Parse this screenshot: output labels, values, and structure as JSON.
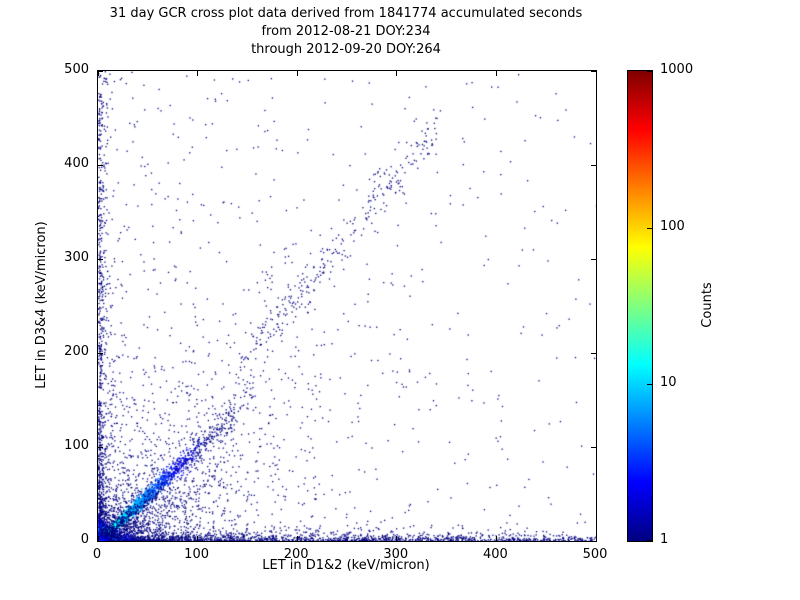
{
  "figure": {
    "title": "31 day GCR cross plot data derived from 1841774 accumulated seconds",
    "subtitle1": "from 2012-08-21 DOY:234",
    "subtitle2": "through 2012-09-20 DOY:264"
  },
  "chart_data": {
    "type": "scatter",
    "title": "31 day GCR cross plot data derived from 1841774 accumulated seconds",
    "subtitles": [
      "from 2012-08-21 DOY:234",
      "through 2012-09-20 DOY:264"
    ],
    "xlabel": "LET in D1&2 (keV/micron)",
    "ylabel": "LET in D3&4 (keV/micron)",
    "xlim": [
      0,
      500
    ],
    "ylim": [
      0,
      500
    ],
    "xticks": [
      0,
      100,
      200,
      300,
      400,
      500
    ],
    "yticks": [
      0,
      100,
      200,
      300,
      400,
      500
    ],
    "grid": false,
    "accumulated_seconds": "1841774",
    "date_start": "2012-08-21",
    "doy_start": "234",
    "date_end": "2012-09-20",
    "doy_end": "264",
    "colorbar": {
      "label": "Counts",
      "scale": "log",
      "range": [
        1,
        1000
      ],
      "ticks": [
        1,
        10,
        100,
        1000
      ],
      "colormap": "jet",
      "colormap_stops": [
        {
          "p": 0.0,
          "c": "#000080"
        },
        {
          "p": 0.125,
          "c": "#0000FF"
        },
        {
          "p": 0.375,
          "c": "#00FFFF"
        },
        {
          "p": 0.625,
          "c": "#FFFF00"
        },
        {
          "p": 0.875,
          "c": "#FF0000"
        },
        {
          "p": 1.0,
          "c": "#800000"
        }
      ]
    },
    "point_color_low_count": "#000080",
    "seed": 1841774,
    "description": "2D density cross plot: very dense hot spot at the origin reaching ~1000 counts (red/orange/yellow core), a cyan y=x coincidence ridge extending to ~120 keV/micron, low-LET bands hugging both axes out to 500, a diffuse dark-blue single-count background mostly below/left, and a sparse secondary branch of slope ~1.3 from ~(150,190) to ~(340,440).",
    "features": [
      {
        "name": "origin-hotspot",
        "type": "origin_blob",
        "n": 4200,
        "mean": 4,
        "falloff": 28
      },
      {
        "name": "main-diagonal",
        "type": "diagonal",
        "n": 3200,
        "mean": 32,
        "tmax": 160,
        "smin": 1.2,
        "sgrow": 0.05,
        "lvl": 0.45,
        "lspan": 110
      },
      {
        "name": "x-axis-band",
        "type": "band_x",
        "n": 2200,
        "pow": 2.2,
        "ymean": 3.5,
        "lvl": 0.32,
        "lspan": 130
      },
      {
        "name": "y-axis-band",
        "type": "band_y",
        "n": 1000,
        "pow": 2.4,
        "xmean": 3.5,
        "lvl": 0.28,
        "lspan": 110
      },
      {
        "name": "wedge-below-diag",
        "type": "wedge_below",
        "n": 1500,
        "mean": 70,
        "lvl": 0.22,
        "lspan": 70
      },
      {
        "name": "wedge-above-diag",
        "type": "wedge_above",
        "n": 900,
        "mean": 90,
        "xcap": 220,
        "lvl": 0.18,
        "lspan": 70
      },
      {
        "name": "upper-branch",
        "type": "branch",
        "n": 300,
        "x0": 140,
        "xspan": 200,
        "slope": 1.3,
        "sigma": 16
      },
      {
        "name": "sparse-background",
        "type": "sparse",
        "n": 550,
        "powx": 1.6,
        "powy": 1.1
      }
    ]
  }
}
